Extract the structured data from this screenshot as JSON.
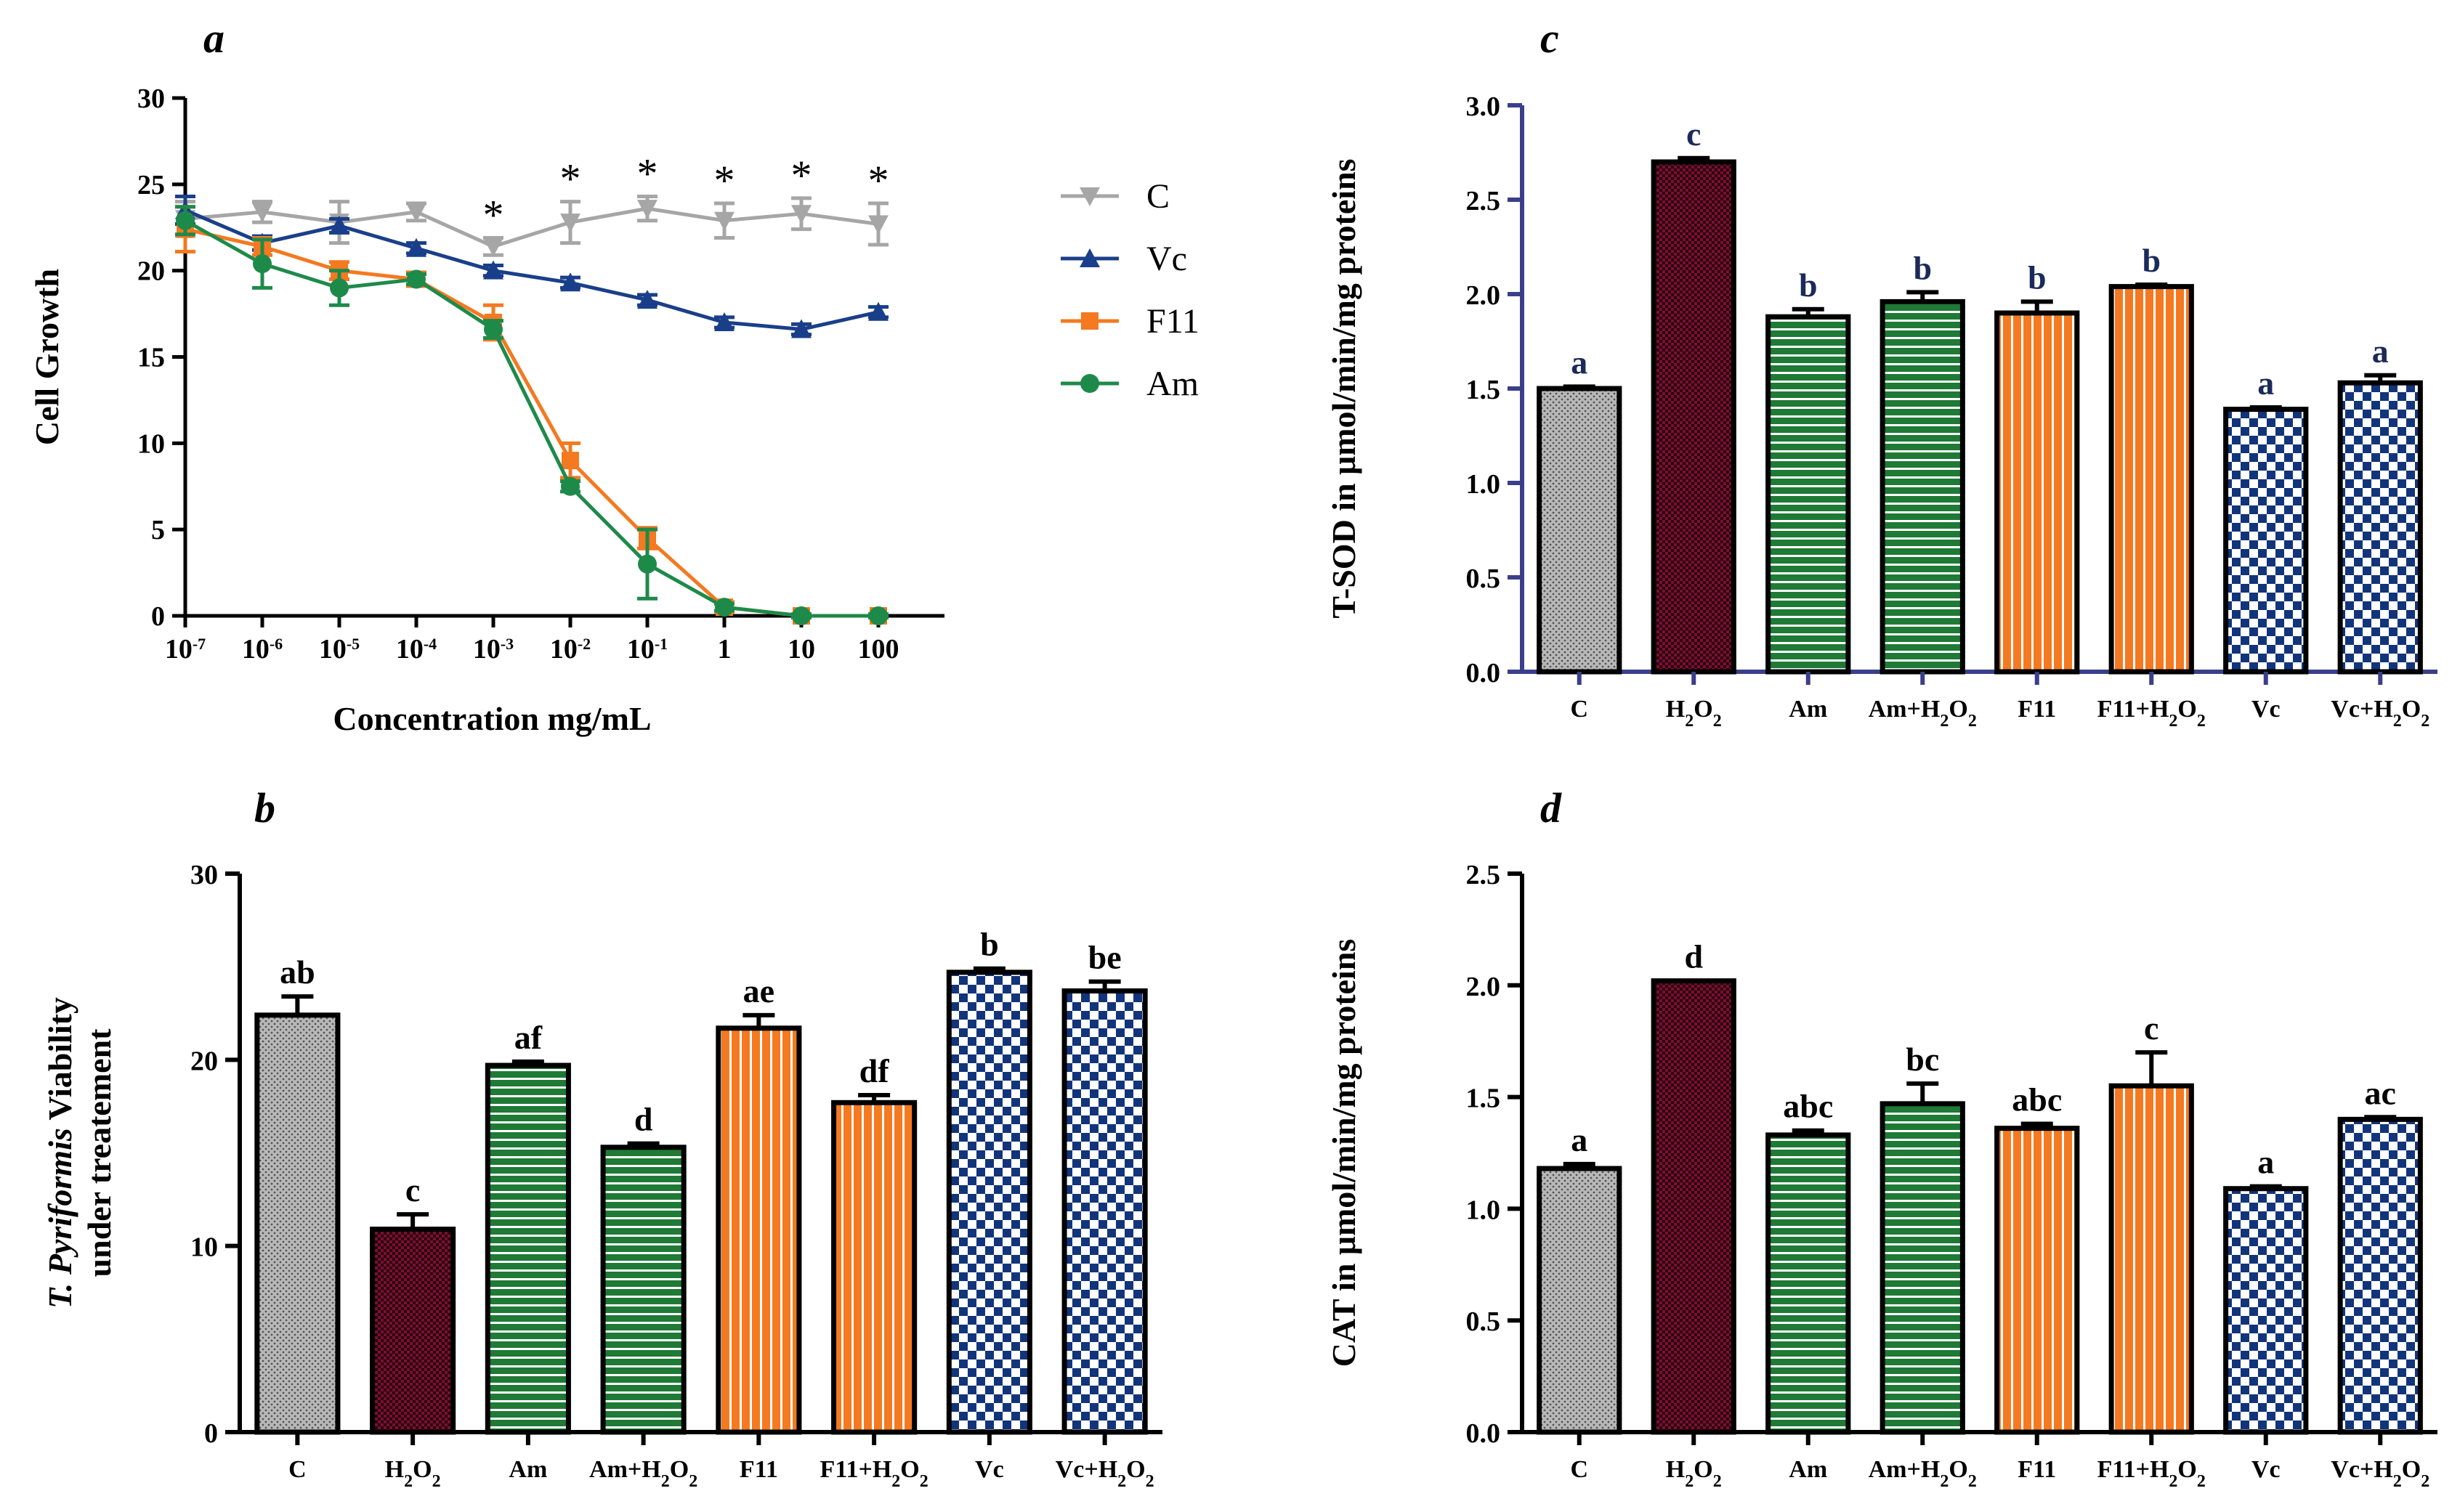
{
  "chart_data": [
    {
      "panel": "a",
      "type": "line",
      "xlabel": "Concentration mg/mL",
      "ylabel": "Cell Growth",
      "ylim": [
        0,
        30
      ],
      "yticks": [
        "0",
        "5",
        "10",
        "15",
        "20",
        "25",
        "30"
      ],
      "categories": [
        "10-7",
        "10-6",
        "10-5",
        "10-4",
        "10-3",
        "10-2",
        "10-1",
        "1",
        "10",
        "100"
      ],
      "category_labels": [
        {
          "base": "10",
          "exp": "-7"
        },
        {
          "base": "10",
          "exp": "-6"
        },
        {
          "base": "10",
          "exp": "-5"
        },
        {
          "base": "10",
          "exp": "-4"
        },
        {
          "base": "10",
          "exp": "-3"
        },
        {
          "base": "10",
          "exp": "-2"
        },
        {
          "base": "10",
          "exp": "-1"
        },
        {
          "base": "1",
          "exp": ""
        },
        {
          "base": "10",
          "exp": ""
        },
        {
          "base": "100",
          "exp": ""
        }
      ],
      "series": [
        {
          "name": "C",
          "color": "#a6a6a6",
          "marker": "triangle-down",
          "values": [
            23,
            23.4,
            22.8,
            23.4,
            21.4,
            22.8,
            23.6,
            22.9,
            23.3,
            22.7
          ],
          "errors": [
            1.0,
            0.6,
            1.2,
            0.5,
            0.5,
            1.2,
            0.7,
            1.0,
            0.9,
            1.2
          ]
        },
        {
          "name": "Vc",
          "color": "#1a3f8a",
          "marker": "triangle-up",
          "values": [
            23.5,
            21.6,
            22.6,
            21.3,
            20.0,
            19.3,
            18.3,
            17.0,
            16.6,
            17.6
          ],
          "errors": [
            0.8,
            0.4,
            0.4,
            0.3,
            0.3,
            0.3,
            0.3,
            0.3,
            0.3,
            0.3
          ]
        },
        {
          "name": "F11",
          "color": "#f47920",
          "marker": "square",
          "values": [
            22.4,
            21.4,
            20.0,
            19.5,
            17.0,
            9.0,
            4.5,
            0.5,
            0.0,
            0.0
          ],
          "errors": [
            1.3,
            0.5,
            0.5,
            0.4,
            1.0,
            1.0,
            0.6,
            0.3,
            0.1,
            0.1
          ]
        },
        {
          "name": "Am",
          "color": "#1e8a4a",
          "marker": "circle",
          "values": [
            22.9,
            20.4,
            19.0,
            19.5,
            16.6,
            7.5,
            3.0,
            0.5,
            0.0,
            0.0
          ],
          "errors": [
            0.8,
            1.4,
            1.0,
            0.3,
            0.5,
            0.3,
            2.0,
            0.2,
            0.1,
            0.1
          ]
        }
      ],
      "significance_marks": [
        "",
        "",
        "",
        "",
        "*",
        "*",
        "*",
        "*",
        "*",
        "*"
      ]
    },
    {
      "panel": "b",
      "type": "bar",
      "ylabel_italic": "T. Pyriformis",
      "ylabel_rest": " Viability",
      "ylabel_line2": "under treatement",
      "ylim": [
        0,
        30
      ],
      "yticks": [
        "0",
        "10",
        "20",
        "30"
      ],
      "categories": [
        "C",
        "H2O2",
        "Am",
        "Am+H2O2",
        "F11",
        "F11+H2O2",
        "Vc",
        "Vc+H2O2"
      ],
      "values": [
        22.4,
        10.9,
        19.7,
        15.3,
        21.7,
        17.7,
        24.7,
        23.7
      ],
      "errors": [
        1.0,
        0.8,
        0.2,
        0.2,
        0.7,
        0.4,
        0.2,
        0.5
      ],
      "letters": [
        "ab",
        "c",
        "af",
        "d",
        "ae",
        "df",
        "b",
        "be"
      ]
    },
    {
      "panel": "c",
      "type": "bar",
      "ylabel": "T-SOD in μmol/min/mg proteins",
      "ylim": [
        0,
        3.0
      ],
      "yticks": [
        "0.0",
        "0.5",
        "1.0",
        "1.5",
        "2.0",
        "2.5",
        "3.0"
      ],
      "categories": [
        "C",
        "H2O2",
        "Am",
        "Am+H2O2",
        "F11",
        "F11+H2O2",
        "Vc",
        "Vc+H2O2"
      ],
      "values": [
        1.5,
        2.7,
        1.88,
        1.96,
        1.9,
        2.04,
        1.39,
        1.53
      ],
      "errors": [
        0.01,
        0.02,
        0.04,
        0.05,
        0.06,
        0.01,
        0.01,
        0.04
      ],
      "letters": [
        "a",
        "c",
        "b",
        "b",
        "b",
        "b",
        "a",
        "a"
      ]
    },
    {
      "panel": "d",
      "type": "bar",
      "ylabel": "CAT in μmol/min/mg proteins",
      "ylim": [
        0,
        2.5
      ],
      "yticks": [
        "0.0",
        "0.5",
        "1.0",
        "1.5",
        "2.0",
        "2.5"
      ],
      "categories": [
        "C",
        "H2O2",
        "Am",
        "Am+H2O2",
        "F11",
        "F11+H2O2",
        "Vc",
        "Vc+H2O2"
      ],
      "values": [
        1.18,
        2.02,
        1.33,
        1.47,
        1.36,
        1.55,
        1.09,
        1.4
      ],
      "errors": [
        0.02,
        0.0,
        0.02,
        0.09,
        0.02,
        0.15,
        0.01,
        0.01
      ],
      "letters": [
        "a",
        "d",
        "abc",
        "bc",
        "abc",
        "c",
        "a",
        "ac"
      ]
    }
  ],
  "colors": {
    "C": "#8a8a8a",
    "H2O2": "#7a1030",
    "Am": "#1e7a35",
    "F11": "#f47920",
    "Vc": "#12347a",
    "axis_c": "#3a3f8a",
    "letter_c": "#1a2a5a"
  }
}
